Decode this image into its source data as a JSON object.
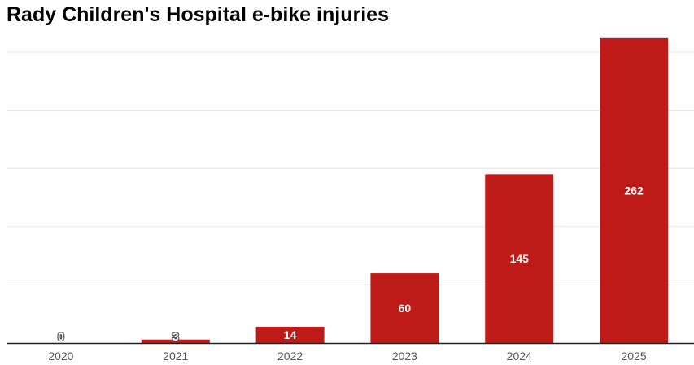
{
  "chart_data": {
    "type": "bar",
    "title": "Rady Children's Hospital e-bike injuries",
    "categories": [
      "2020",
      "2021",
      "2022",
      "2023",
      "2024",
      "2025"
    ],
    "values": [
      0,
      3,
      14,
      60,
      145,
      262
    ],
    "value_labels": [
      "0",
      "3",
      "14",
      "60",
      "145",
      "262"
    ],
    "ylim": [
      0,
      250
    ],
    "y_gridlines": [
      0,
      50,
      100,
      150,
      200,
      250
    ],
    "grid": true,
    "legend": "none",
    "colors": {
      "bar": "#be1a17",
      "grid": "#e6e6e6",
      "axis": "#222222"
    }
  }
}
